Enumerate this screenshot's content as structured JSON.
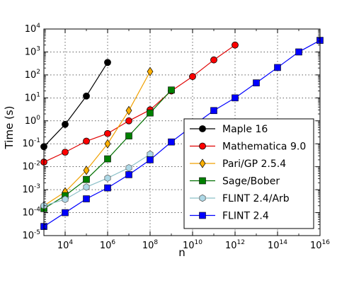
{
  "chart_data": {
    "type": "line",
    "xlabel": "n",
    "ylabel": "Time (s)",
    "x_scale": "log",
    "y_scale": "log",
    "xlim": [
      1000,
      10000000000000000
    ],
    "ylim": [
      1e-05,
      10000
    ],
    "grid": true,
    "legend_position": "lower-right",
    "x_ticks": [
      {
        "value": 10000,
        "base": "10",
        "exp": "4"
      },
      {
        "value": 1000000,
        "base": "10",
        "exp": "6"
      },
      {
        "value": 100000000,
        "base": "10",
        "exp": "8"
      },
      {
        "value": 10000000000,
        "base": "10",
        "exp": "10"
      },
      {
        "value": 1000000000000,
        "base": "10",
        "exp": "12"
      },
      {
        "value": 100000000000000,
        "base": "10",
        "exp": "14"
      },
      {
        "value": 10000000000000000,
        "base": "10",
        "exp": "16"
      }
    ],
    "y_ticks": [
      {
        "value": 1e-05,
        "base": "10",
        "exp": "-5"
      },
      {
        "value": 0.0001,
        "base": "10",
        "exp": "-4"
      },
      {
        "value": 0.001,
        "base": "10",
        "exp": "-3"
      },
      {
        "value": 0.01,
        "base": "10",
        "exp": "-2"
      },
      {
        "value": 0.1,
        "base": "10",
        "exp": "-1"
      },
      {
        "value": 1,
        "base": "10",
        "exp": "0"
      },
      {
        "value": 10,
        "base": "10",
        "exp": "1"
      },
      {
        "value": 100,
        "base": "10",
        "exp": "2"
      },
      {
        "value": 1000,
        "base": "10",
        "exp": "3"
      },
      {
        "value": 10000,
        "base": "10",
        "exp": "4"
      }
    ],
    "series": [
      {
        "name": "Maple 16",
        "color": "#000000",
        "fill": "#000000",
        "marker": "circle",
        "x": [
          1000,
          10000,
          100000,
          1000000
        ],
        "y": [
          0.075,
          0.7,
          12,
          350
        ]
      },
      {
        "name": "Mathematica 9.0",
        "color": "#e00000",
        "fill": "#ff0000",
        "marker": "circle",
        "x": [
          1000,
          10000,
          100000,
          1000000,
          10000000,
          100000000,
          1000000000,
          10000000000,
          100000000000,
          1000000000000
        ],
        "y": [
          0.016,
          0.043,
          0.13,
          0.28,
          1.0,
          3.0,
          20,
          85,
          450,
          2000
        ]
      },
      {
        "name": "Pari/GP 2.5.4",
        "color": "#f0a000",
        "fill": "#ffb000",
        "marker": "diamond",
        "x": [
          1000,
          10000,
          100000,
          1000000,
          10000000,
          100000000
        ],
        "y": [
          0.0002,
          0.0008,
          0.007,
          0.1,
          2.8,
          140
        ]
      },
      {
        "name": "Sage/Bober",
        "color": "#007000",
        "fill": "#008000",
        "marker": "square",
        "x": [
          1000,
          10000,
          100000,
          1000000,
          10000000,
          100000000,
          1000000000
        ],
        "y": [
          0.00015,
          0.00055,
          0.0028,
          0.022,
          0.22,
          2.2,
          22
        ]
      },
      {
        "name": "FLINT 2.4/Arb",
        "color": "#8cc0c8",
        "fill": "#add8e6",
        "marker": "hexagon",
        "x": [
          1000,
          10000,
          100000,
          1000000,
          10000000,
          100000000
        ],
        "y": [
          0.0002,
          0.00038,
          0.0013,
          0.0032,
          0.009,
          0.035
        ]
      },
      {
        "name": "FLINT 2.4",
        "color": "#0000ff",
        "fill": "#0000ff",
        "marker": "square",
        "x": [
          1000,
          10000,
          100000,
          1000000,
          10000000,
          100000000,
          1000000000,
          10000000000,
          100000000000,
          1000000000000,
          10000000000000,
          100000000000000,
          1000000000000000,
          10000000000000000
        ],
        "y": [
          2.5e-05,
          0.0001,
          0.0004,
          0.0012,
          0.0045,
          0.02,
          0.12,
          0.6,
          2.8,
          10,
          45,
          210,
          1000,
          3200
        ]
      }
    ]
  }
}
